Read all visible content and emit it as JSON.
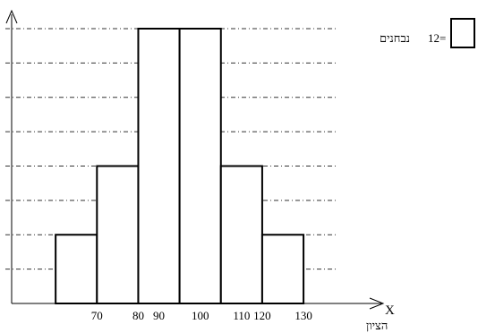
{
  "chart_data": {
    "type": "bar",
    "subtype": "histogram",
    "bins": [
      {
        "from": 60,
        "to": 70,
        "value": 2
      },
      {
        "from": 70,
        "to": 80,
        "value": 4
      },
      {
        "from": 80,
        "to": 90,
        "value": 8
      },
      {
        "from": 90,
        "to": 100,
        "value": 8
      },
      {
        "from": 100,
        "to": 110,
        "value": 4
      },
      {
        "from": 110,
        "to": 120,
        "value": 2
      }
    ],
    "x_tick_labels": [
      {
        "text": "70",
        "x": 70
      },
      {
        "text": "80",
        "x": 80
      },
      {
        "text": "90",
        "x": 85
      },
      {
        "text": "100",
        "x": 95
      },
      {
        "text": "110",
        "x": 105
      },
      {
        "text": "120",
        "x": 110
      },
      {
        "text": "130",
        "x": 120
      }
    ],
    "x_range": [
      50,
      128
    ],
    "ylim": [
      0,
      8
    ],
    "gridlines_y": [
      1,
      2,
      3,
      4,
      5,
      6,
      7,
      8
    ],
    "grid": true,
    "grid_style": "dash-dot",
    "xlabel": "X",
    "xlabel_word": "הציון",
    "legend": {
      "count_text": "12=",
      "label": "נבחנים",
      "position": "top-right"
    }
  }
}
